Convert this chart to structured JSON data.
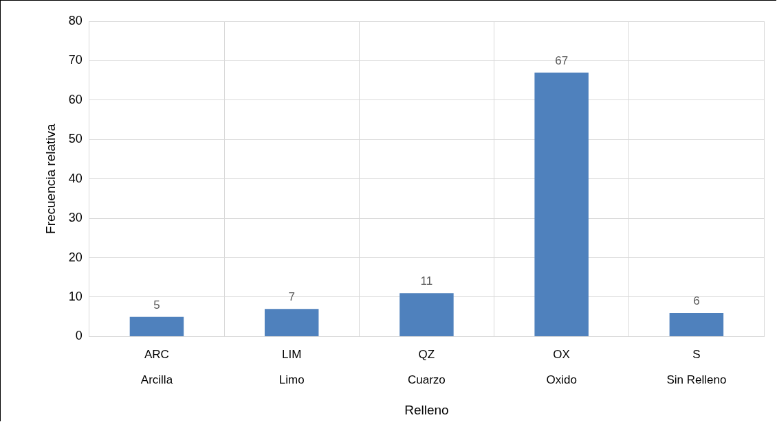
{
  "chart_data": {
    "type": "bar",
    "xlabel": "Relleno",
    "ylabel": "Frecuencia relativa",
    "categories": [
      "ARC\nArcilla",
      "LIM\nLimo",
      "QZ\nCuarzo",
      "OX\nOxido",
      "S\nSin Relleno"
    ],
    "values": [
      5,
      7,
      11,
      67,
      6
    ],
    "color": "#4f81bd",
    "ylim": [
      0,
      80
    ],
    "yticks": [
      0,
      10,
      20,
      30,
      40,
      50,
      60,
      70,
      80
    ],
    "grid": true,
    "data_labels": true,
    "legend": false
  }
}
